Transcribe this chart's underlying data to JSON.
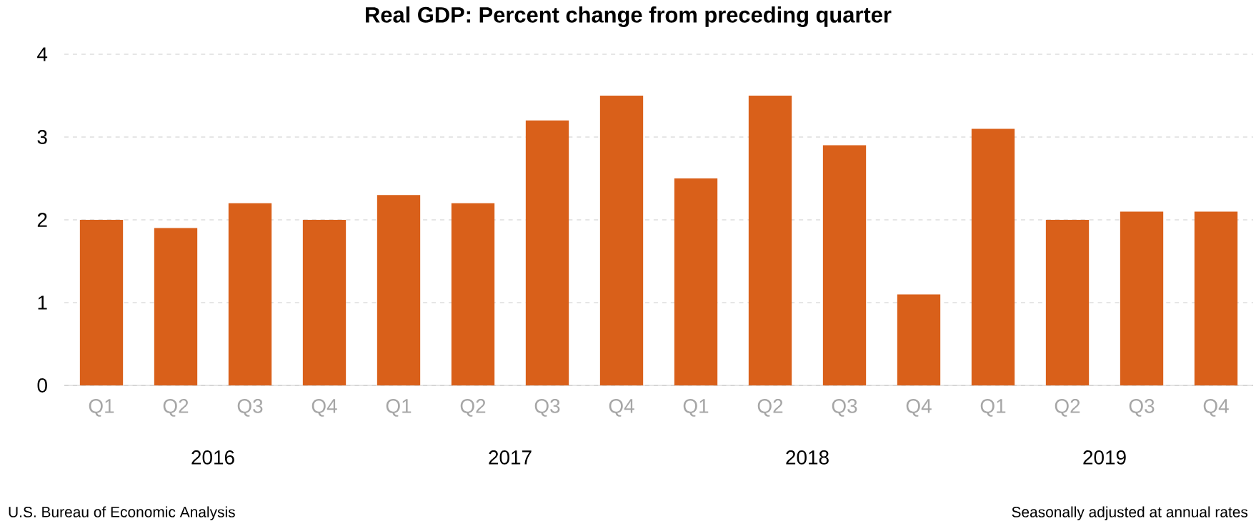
{
  "chart_data": {
    "type": "bar",
    "title": "Real GDP:  Percent change from preceding quarter",
    "categories": [
      "Q1",
      "Q2",
      "Q3",
      "Q4",
      "Q1",
      "Q2",
      "Q3",
      "Q4",
      "Q1",
      "Q2",
      "Q3",
      "Q4",
      "Q1",
      "Q2",
      "Q3",
      "Q4"
    ],
    "values": [
      2.0,
      1.9,
      2.2,
      2.0,
      2.3,
      2.2,
      3.2,
      3.5,
      2.5,
      3.5,
      2.9,
      1.1,
      3.1,
      2.0,
      2.1,
      2.1
    ],
    "color": "#d9601a",
    "ylim": [
      0,
      4
    ],
    "yticks": [
      0,
      1,
      2,
      3,
      4
    ],
    "grid": "y",
    "annotations": [
      "2016",
      "2017",
      "2018",
      "2019",
      "U.S. Bureau of Economic Analysis",
      "Seasonally adjusted at annual rates"
    ]
  }
}
